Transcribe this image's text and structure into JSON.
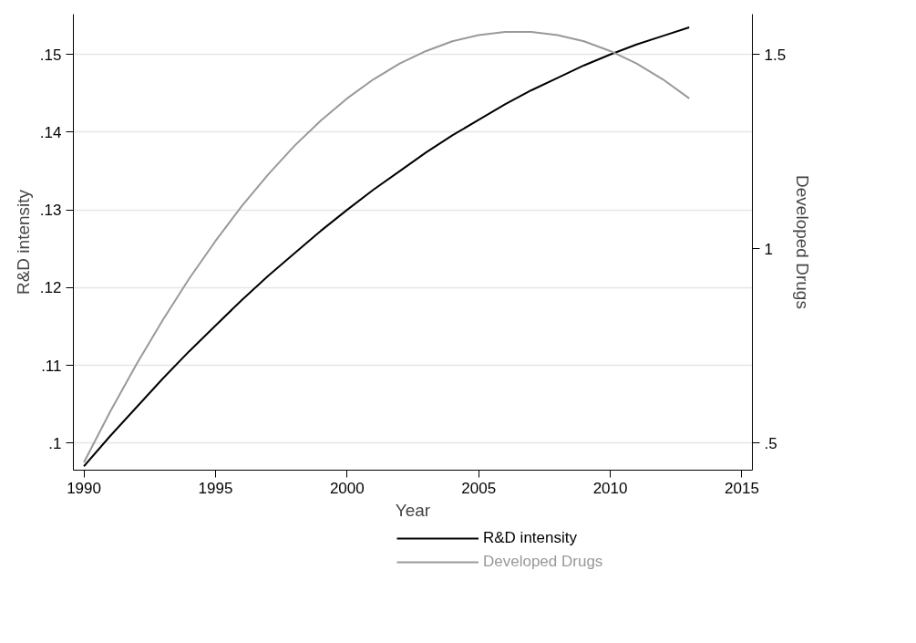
{
  "chart_data": {
    "type": "line",
    "xlabel": "Year",
    "ylabel": "R&D intensity",
    "y2label": "Developed Drugs",
    "x": [
      1990,
      1991,
      1992,
      1993,
      1994,
      1995,
      1996,
      1997,
      1998,
      1999,
      2000,
      2001,
      2002,
      2003,
      2004,
      2005,
      2006,
      2007,
      2008,
      2009,
      2010,
      2011,
      2012,
      2013
    ],
    "series": [
      {
        "name": "R&D intensity",
        "color": "#000000",
        "values": [
          0.097,
          0.1009,
          0.1046,
          0.1083,
          0.1118,
          0.1151,
          0.1184,
          0.1215,
          0.1244,
          0.1273,
          0.13,
          0.1326,
          0.135,
          0.1374,
          0.1396,
          0.1416,
          0.1436,
          0.1454,
          0.147,
          0.1486,
          0.15,
          0.1513,
          0.1524,
          0.1535
        ]
      },
      {
        "name": "Developed Drugs",
        "color": "#999999",
        "axis": "y2",
        "values": [
          0.45,
          0.581,
          0.703,
          0.817,
          0.923,
          1.02,
          1.11,
          1.191,
          1.265,
          1.33,
          1.387,
          1.436,
          1.477,
          1.509,
          1.534,
          1.55,
          1.558,
          1.558,
          1.55,
          1.534,
          1.509,
          1.477,
          1.436,
          1.387
        ]
      }
    ],
    "xlim": [
      1989.6,
      2015.4
    ],
    "xticks": [
      1990,
      1995,
      2000,
      2005,
      2010,
      2015
    ],
    "ylim": [
      0.0965,
      0.1552
    ],
    "yticks": [
      {
        "value": 0.1,
        "label": ".1"
      },
      {
        "value": 0.11,
        "label": ".11"
      },
      {
        "value": 0.12,
        "label": ".12"
      },
      {
        "value": 0.13,
        "label": ".13"
      },
      {
        "value": 0.14,
        "label": ".14"
      },
      {
        "value": 0.15,
        "label": ".15"
      }
    ],
    "y2lim": [
      0.43,
      1.604
    ],
    "y2ticks": [
      {
        "value": 0.5,
        "label": ".5"
      },
      1,
      1.5
    ],
    "grid": "y",
    "legend": "bottom",
    "line_style": "solid",
    "marker": "none"
  }
}
